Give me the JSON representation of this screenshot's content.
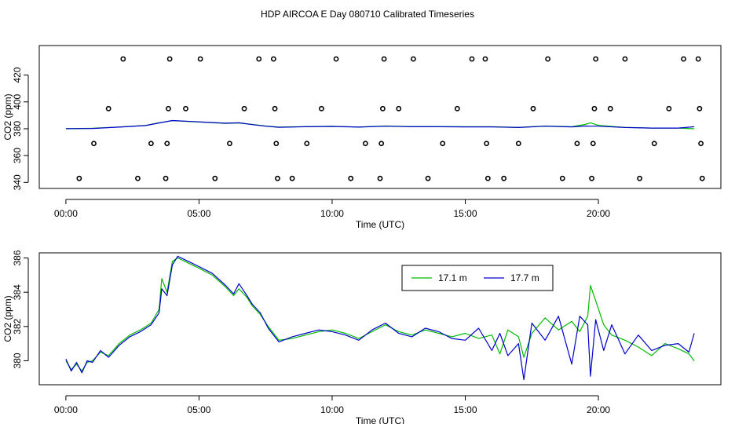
{
  "chart_data": [
    {
      "type": "scatter",
      "title": "HDP AIRCOA E  Day 080710  Calibrated Timeseries",
      "xlabel": "Time (UTC)",
      "ylabel": "CO2 (ppm)",
      "xlim": [
        -1.0,
        24.6
      ],
      "ylim": [
        335.5,
        442.0
      ],
      "x_ticks": [
        0,
        5,
        10,
        15,
        20
      ],
      "x_tick_labels": [
        "00:00",
        "05:00",
        "10:00",
        "15:00",
        "20:00"
      ],
      "y_ticks": [
        340,
        360,
        380,
        400,
        420
      ],
      "y_tick_labels": [
        "340",
        "360",
        "380",
        "400",
        "420"
      ],
      "grid": false,
      "legend": null,
      "series": [
        {
          "kind": "calibration-points",
          "color": "#000000",
          "points": [
            {
              "x": 0.5,
              "y": 343
            },
            {
              "x": 1.05,
              "y": 369
            },
            {
              "x": 1.6,
              "y": 395
            },
            {
              "x": 2.15,
              "y": 432
            },
            {
              "x": 2.7,
              "y": 343
            },
            {
              "x": 3.2,
              "y": 369
            },
            {
              "x": 3.75,
              "y": 343
            },
            {
              "x": 3.8,
              "y": 369
            },
            {
              "x": 3.85,
              "y": 395
            },
            {
              "x": 3.9,
              "y": 432
            },
            {
              "x": 4.5,
              "y": 395
            },
            {
              "x": 5.05,
              "y": 432
            },
            {
              "x": 5.6,
              "y": 343
            },
            {
              "x": 6.15,
              "y": 369
            },
            {
              "x": 6.7,
              "y": 395
            },
            {
              "x": 7.25,
              "y": 432
            },
            {
              "x": 7.8,
              "y": 432
            },
            {
              "x": 7.85,
              "y": 395
            },
            {
              "x": 7.9,
              "y": 369
            },
            {
              "x": 7.95,
              "y": 343
            },
            {
              "x": 8.5,
              "y": 343
            },
            {
              "x": 9.05,
              "y": 369
            },
            {
              "x": 9.6,
              "y": 395
            },
            {
              "x": 10.15,
              "y": 432
            },
            {
              "x": 10.7,
              "y": 343
            },
            {
              "x": 11.25,
              "y": 369
            },
            {
              "x": 11.8,
              "y": 343
            },
            {
              "x": 11.85,
              "y": 369
            },
            {
              "x": 11.9,
              "y": 395
            },
            {
              "x": 11.95,
              "y": 432
            },
            {
              "x": 12.5,
              "y": 395
            },
            {
              "x": 13.05,
              "y": 432
            },
            {
              "x": 13.6,
              "y": 343
            },
            {
              "x": 14.15,
              "y": 369
            },
            {
              "x": 14.7,
              "y": 395
            },
            {
              "x": 15.25,
              "y": 432
            },
            {
              "x": 15.75,
              "y": 432
            },
            {
              "x": 15.8,
              "y": 369
            },
            {
              "x": 15.85,
              "y": 343
            },
            {
              "x": 16.45,
              "y": 343
            },
            {
              "x": 17.0,
              "y": 369
            },
            {
              "x": 17.55,
              "y": 395
            },
            {
              "x": 18.1,
              "y": 432
            },
            {
              "x": 18.65,
              "y": 343
            },
            {
              "x": 19.2,
              "y": 369
            },
            {
              "x": 19.75,
              "y": 343
            },
            {
              "x": 19.8,
              "y": 369
            },
            {
              "x": 19.85,
              "y": 395
            },
            {
              "x": 19.9,
              "y": 432
            },
            {
              "x": 20.45,
              "y": 395
            },
            {
              "x": 21.0,
              "y": 432
            },
            {
              "x": 21.55,
              "y": 343
            },
            {
              "x": 22.1,
              "y": 369
            },
            {
              "x": 22.65,
              "y": 395
            },
            {
              "x": 23.2,
              "y": 432
            },
            {
              "x": 23.75,
              "y": 432
            },
            {
              "x": 23.8,
              "y": 395
            },
            {
              "x": 23.85,
              "y": 369
            },
            {
              "x": 23.9,
              "y": 343
            }
          ]
        },
        {
          "kind": "line",
          "color": "#00bb00",
          "x": [
            0.0,
            1.0,
            2.0,
            3.0,
            3.5,
            4.0,
            5.0,
            6.0,
            6.5,
            7.0,
            7.5,
            8.0,
            9.0,
            10.0,
            11.0,
            12.0,
            13.0,
            14.0,
            15.0,
            16.0,
            17.0,
            18.0,
            19.0,
            19.5,
            19.7,
            20.0,
            21.0,
            22.0,
            23.0,
            23.6
          ],
          "y": [
            380.0,
            380.3,
            381.3,
            382.5,
            384.5,
            386.0,
            385.0,
            384.0,
            384.3,
            383.2,
            382.0,
            381.2,
            381.6,
            381.8,
            381.3,
            382.0,
            381.6,
            381.6,
            381.5,
            381.5,
            381.0,
            382.0,
            381.5,
            383.2,
            384.4,
            382.5,
            381.0,
            380.5,
            380.5,
            380.0
          ]
        },
        {
          "kind": "line",
          "color": "#0000cc",
          "x": [
            0.0,
            1.0,
            2.0,
            3.0,
            3.5,
            4.0,
            5.0,
            6.0,
            6.5,
            7.0,
            7.5,
            8.0,
            9.0,
            10.0,
            11.0,
            12.0,
            13.0,
            14.0,
            15.0,
            16.0,
            17.0,
            18.0,
            19.0,
            19.5,
            19.7,
            20.0,
            21.0,
            22.0,
            23.0,
            23.6
          ],
          "y": [
            380.1,
            380.2,
            381.2,
            382.4,
            384.3,
            386.1,
            385.1,
            384.1,
            384.4,
            383.1,
            381.9,
            381.1,
            381.5,
            381.7,
            381.2,
            381.9,
            381.5,
            381.5,
            381.4,
            381.4,
            380.9,
            381.9,
            381.4,
            382.0,
            381.9,
            381.9,
            380.9,
            380.5,
            380.5,
            381.5
          ]
        }
      ]
    },
    {
      "type": "line",
      "title": "",
      "xlabel": "Time (UTC)",
      "ylabel": "CO2 (ppm)",
      "xlim": [
        -1.0,
        24.6
      ],
      "ylim": [
        378.6,
        386.3
      ],
      "x_ticks": [
        0,
        5,
        10,
        15,
        20
      ],
      "x_tick_labels": [
        "00:00",
        "05:00",
        "10:00",
        "15:00",
        "20:00"
      ],
      "y_ticks": [
        380,
        382,
        384,
        386
      ],
      "y_tick_labels": [
        "380",
        "382",
        "384",
        "386"
      ],
      "grid": false,
      "legend": "top-right",
      "series": [
        {
          "name": "17.1 m",
          "color": "#00bb00",
          "x": [
            0.0,
            0.2,
            0.4,
            0.6,
            0.8,
            1.0,
            1.3,
            1.6,
            2.0,
            2.4,
            2.8,
            3.2,
            3.5,
            3.6,
            3.8,
            4.0,
            4.2,
            4.6,
            5.0,
            5.5,
            6.0,
            6.3,
            6.5,
            6.8,
            7.0,
            7.3,
            7.6,
            8.0,
            8.5,
            9.0,
            9.5,
            10.0,
            10.5,
            11.0,
            11.5,
            12.0,
            12.5,
            13.0,
            13.5,
            14.0,
            14.5,
            15.0,
            15.5,
            16.0,
            16.3,
            16.6,
            17.0,
            17.2,
            17.5,
            18.0,
            18.5,
            19.0,
            19.3,
            19.6,
            19.7,
            19.9,
            20.2,
            20.5,
            21.0,
            21.5,
            22.0,
            22.5,
            23.0,
            23.4,
            23.6
          ],
          "y": [
            380.0,
            379.5,
            379.8,
            379.4,
            379.9,
            380.0,
            380.5,
            380.3,
            381.0,
            381.5,
            381.8,
            382.2,
            383.0,
            384.8,
            384.0,
            385.8,
            386.0,
            385.7,
            385.4,
            385.0,
            384.3,
            383.8,
            384.2,
            383.7,
            383.2,
            382.7,
            382.0,
            381.2,
            381.3,
            381.5,
            381.7,
            381.8,
            381.6,
            381.3,
            381.7,
            382.1,
            381.7,
            381.5,
            381.8,
            381.6,
            381.4,
            381.6,
            381.3,
            381.5,
            380.4,
            381.8,
            381.4,
            380.2,
            381.6,
            382.5,
            381.8,
            382.3,
            381.7,
            382.6,
            384.4,
            383.5,
            382.1,
            381.5,
            381.2,
            380.8,
            380.3,
            381.0,
            380.7,
            380.4,
            380.0
          ]
        },
        {
          "name": "17.7 m",
          "color": "#0000cc",
          "x": [
            0.0,
            0.2,
            0.4,
            0.6,
            0.8,
            1.0,
            1.3,
            1.6,
            2.0,
            2.4,
            2.8,
            3.2,
            3.5,
            3.6,
            3.8,
            4.0,
            4.2,
            4.6,
            5.0,
            5.5,
            6.0,
            6.3,
            6.5,
            6.8,
            7.0,
            7.3,
            7.6,
            8.0,
            8.5,
            9.0,
            9.5,
            10.0,
            10.5,
            11.0,
            11.5,
            12.0,
            12.5,
            13.0,
            13.5,
            14.0,
            14.5,
            15.0,
            15.5,
            16.0,
            16.3,
            16.6,
            17.0,
            17.2,
            17.5,
            18.0,
            18.5,
            19.0,
            19.3,
            19.6,
            19.7,
            19.9,
            20.2,
            20.5,
            21.0,
            21.5,
            22.0,
            22.5,
            23.0,
            23.4,
            23.6
          ],
          "y": [
            380.1,
            379.4,
            379.9,
            379.3,
            380.0,
            379.9,
            380.6,
            380.2,
            380.9,
            381.4,
            381.7,
            382.1,
            382.8,
            384.2,
            383.8,
            385.6,
            386.1,
            385.8,
            385.5,
            385.1,
            384.4,
            383.9,
            384.5,
            383.8,
            383.3,
            382.8,
            381.9,
            381.1,
            381.4,
            381.6,
            381.8,
            381.7,
            381.5,
            381.2,
            381.8,
            382.2,
            381.6,
            381.4,
            381.9,
            381.7,
            381.3,
            381.2,
            381.9,
            380.6,
            381.6,
            380.3,
            381.0,
            378.9,
            382.2,
            381.2,
            382.6,
            379.8,
            382.6,
            382.1,
            379.1,
            382.4,
            380.6,
            382.1,
            380.4,
            381.5,
            380.6,
            380.9,
            381.0,
            380.5,
            381.6
          ]
        }
      ]
    }
  ]
}
